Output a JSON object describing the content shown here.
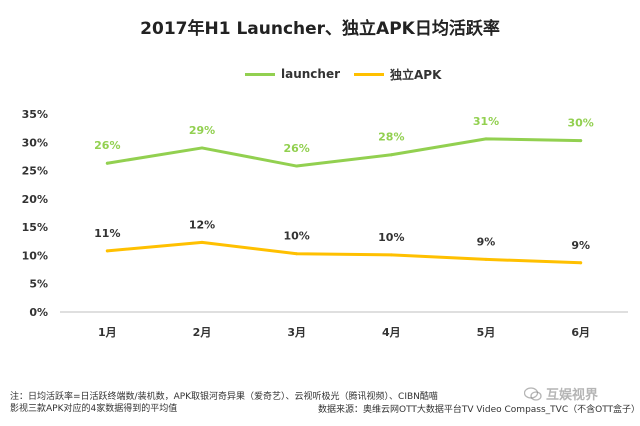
{
  "chart_data": {
    "type": "line",
    "title": "2017年H1 Launcher、独立APK日均活跃率",
    "categories": [
      "1月",
      "2月",
      "3月",
      "4月",
      "5月",
      "6月"
    ],
    "series": [
      {
        "name": "launcher",
        "color": "#92d050",
        "values": [
          26.3,
          29.0,
          25.8,
          27.8,
          30.6,
          30.3
        ],
        "labels": [
          "26%",
          "29%",
          "26%",
          "28%",
          "31%",
          "30%"
        ]
      },
      {
        "name": "独立APK",
        "color": "#ffc000",
        "values": [
          10.8,
          12.3,
          10.3,
          10.1,
          9.3,
          8.7
        ],
        "labels": [
          "11%",
          "12%",
          "10%",
          "10%",
          "9%",
          "9%"
        ]
      }
    ],
    "ylim": [
      0,
      35
    ],
    "yticks": [
      0,
      5,
      10,
      15,
      20,
      25,
      30,
      35
    ],
    "ytick_labels": [
      "0%",
      "5%",
      "10%",
      "15%",
      "20%",
      "25%",
      "30%",
      "35%"
    ],
    "grid": false,
    "legend_position": "top-center",
    "xlabel": "",
    "ylabel": ""
  },
  "footer": {
    "note": "注：日均活跃率=日活跃终端数/装机数，APK取银河奇异果（爱奇艺）、云视听极光（腾讯视频）、CIBN酷喵影视三款APK对应的4家数据得到的平均值",
    "source": "数据来源：奥维云网OTT大数据平台TV Video Compass_TVC（不含OTT盒子）"
  },
  "watermark": {
    "text": "互娱视界"
  }
}
